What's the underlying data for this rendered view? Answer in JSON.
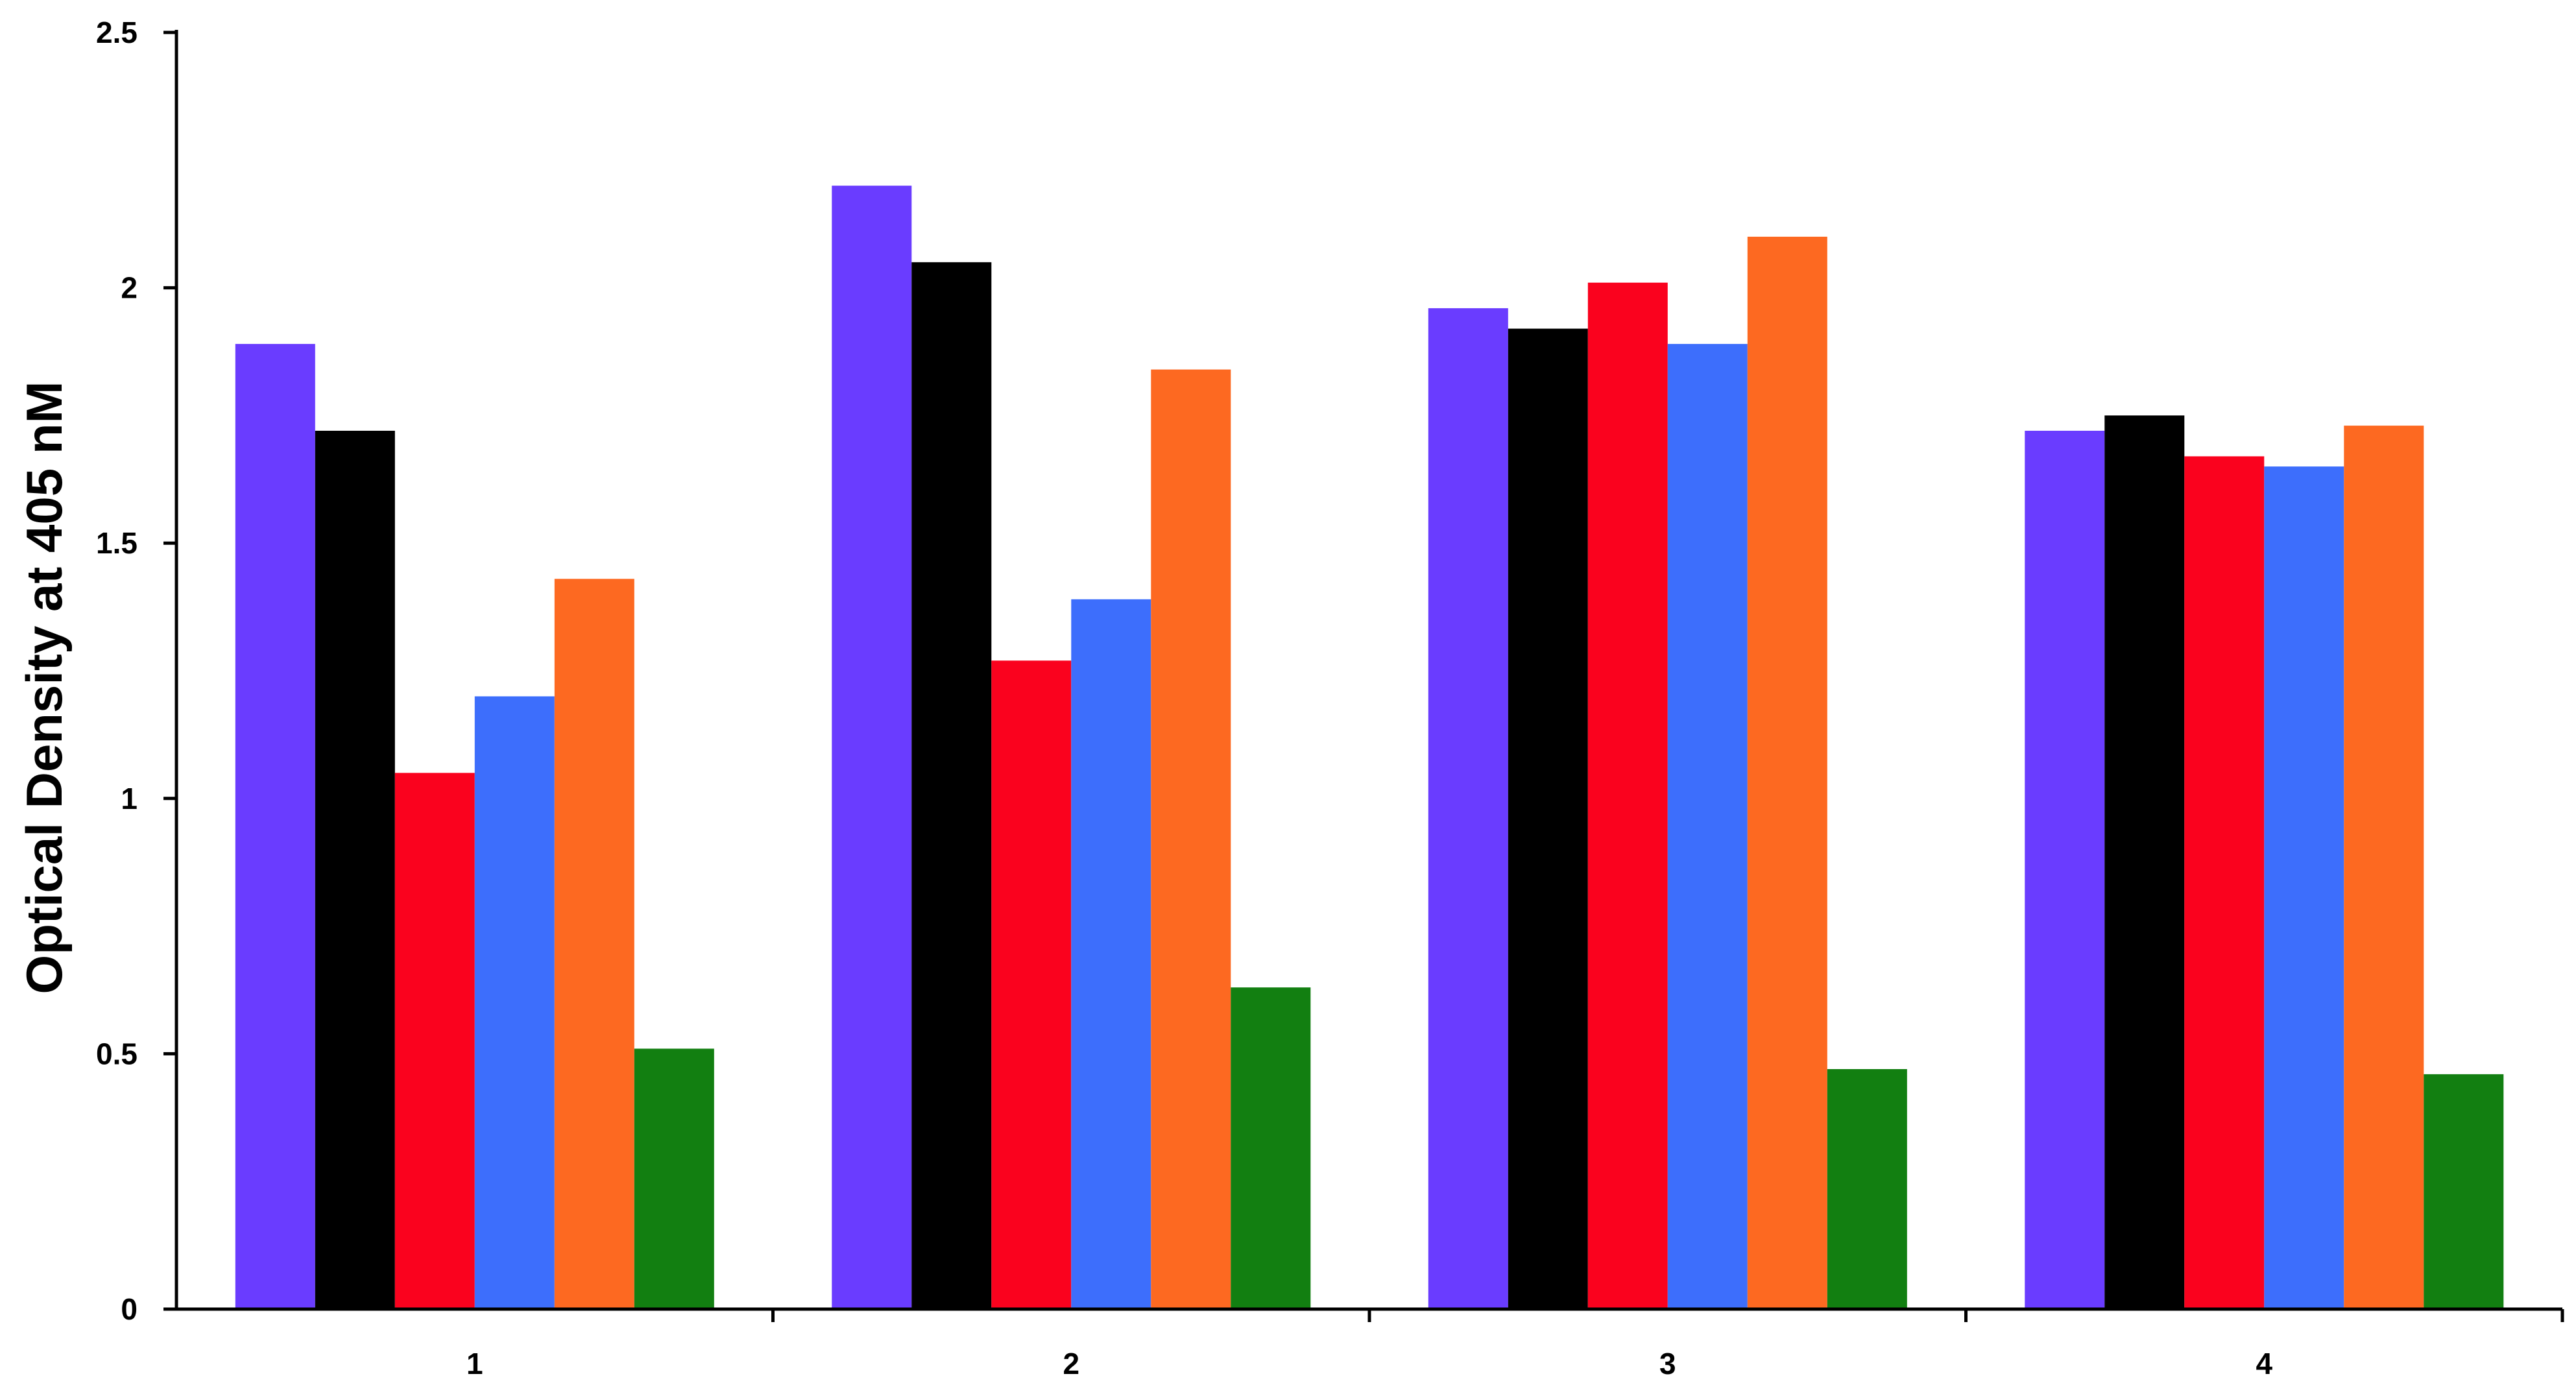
{
  "chart_data": {
    "type": "bar",
    "title": "",
    "xlabel": "",
    "ylabel": "Optical Density at 405 nM",
    "ylim": [
      0,
      2.5
    ],
    "yticks": [
      "0",
      "0.5",
      "1",
      "1.5",
      "2",
      "2.5"
    ],
    "categories": [
      "1",
      "2",
      "3",
      "4"
    ],
    "grid": false,
    "legend": "none",
    "series": [
      {
        "color": "#6a3cff",
        "values": [
          1.89,
          2.2,
          1.96,
          1.72
        ]
      },
      {
        "color": "#000000",
        "values": [
          1.72,
          2.05,
          1.92,
          1.75
        ]
      },
      {
        "color": "#fa021e",
        "values": [
          1.05,
          1.27,
          2.01,
          1.67
        ]
      },
      {
        "color": "#3d6efc",
        "values": [
          1.2,
          1.39,
          1.89,
          1.65
        ]
      },
      {
        "color": "#fd6921",
        "values": [
          1.43,
          1.84,
          2.1,
          1.73
        ]
      },
      {
        "color": "#127f11",
        "values": [
          0.51,
          0.63,
          0.47,
          0.46
        ]
      }
    ]
  }
}
